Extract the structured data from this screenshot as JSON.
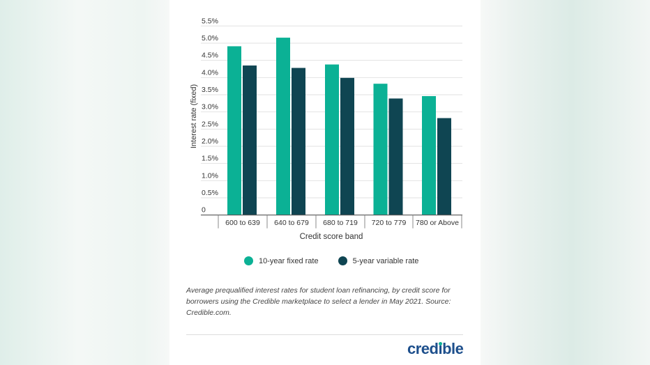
{
  "chart_data": {
    "type": "bar",
    "title": "",
    "xlabel": "Credit score band",
    "ylabel": "Interest rate (fixed)",
    "ylim": [
      0,
      5.5
    ],
    "yticks": [
      "0",
      "0.5%",
      "1.0%",
      "1.5%",
      "2.0%",
      "2.5%",
      "3.0%",
      "3.5%",
      "4.0%",
      "4.5%",
      "5.0%",
      "5.5%"
    ],
    "grid": true,
    "legend": "bottom",
    "categories": [
      "600 to 639",
      "640 to 679",
      "680 to 719",
      "720 to 779",
      "780 or Above"
    ],
    "series": [
      {
        "name": "10-year fixed rate",
        "color": "#0bb195",
        "values": [
          4.91,
          5.16,
          4.38,
          3.82,
          3.46
        ]
      },
      {
        "name": "5-year variable rate",
        "color": "#0f4552",
        "values": [
          4.35,
          4.28,
          3.99,
          3.39,
          2.82
        ]
      }
    ]
  },
  "caption": "Average prequalified interest rates for student loan refinancing, by credit score for borrowers using the Credible marketplace to select a lender in May 2021. Source: Credible.com.",
  "logo": {
    "text": "credible",
    "color": "#1d4f8c",
    "dot_color": "#0bb195"
  }
}
